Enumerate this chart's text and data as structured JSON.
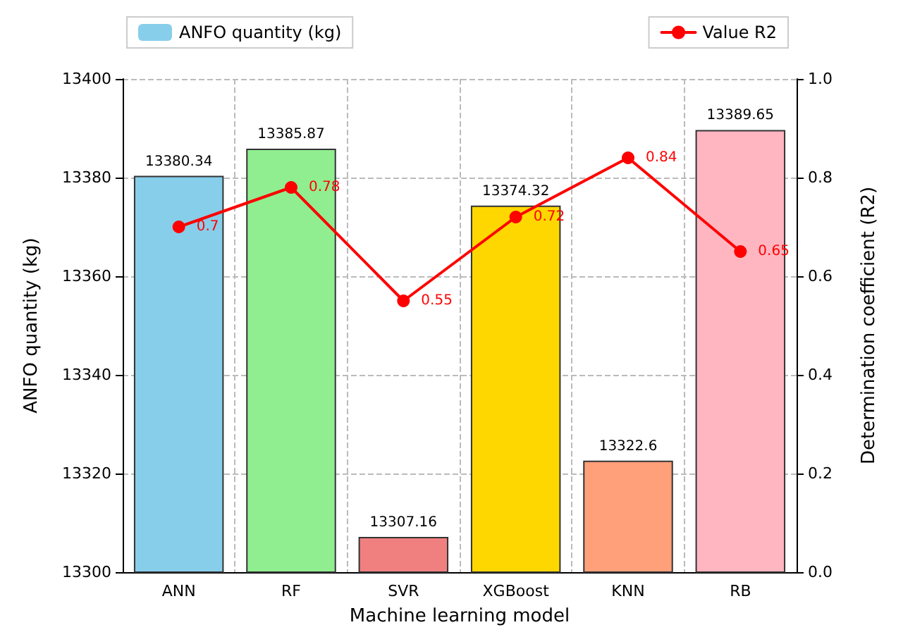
{
  "chart_data": {
    "type": "bar",
    "xlabel": "Machine learning model",
    "ylabel": "ANFO quantity (kg)",
    "y2label": "Determination coefficient (R2)",
    "categories": [
      "ANN",
      "RF",
      "SVR",
      "XGBoost",
      "KNN",
      "RB"
    ],
    "series": [
      {
        "name": "ANFO quantity (kg)",
        "colors": [
          "#87ceeb",
          "#90ee90",
          "#f08080",
          "#ffd700",
          "#ffa07a",
          "#ffb6c1"
        ],
        "values": [
          13380.34,
          13385.87,
          13307.16,
          13374.32,
          13322.6,
          13389.65
        ]
      },
      {
        "type": "line",
        "name": "Value R2",
        "color": "#ff0000",
        "axis": "y2",
        "values": [
          0.7,
          0.78,
          0.55,
          0.72,
          0.84,
          0.65
        ]
      }
    ],
    "ylim": [
      13300,
      13400
    ],
    "yticks": [
      13300,
      13320,
      13340,
      13360,
      13380,
      13400
    ],
    "y2lim": [
      0,
      1
    ],
    "y2ticks": [
      {
        "value": 0,
        "label": "0.0"
      },
      {
        "value": 0.2,
        "label": "0.2"
      },
      {
        "value": 0.4,
        "label": "0.4"
      },
      {
        "value": 0.6,
        "label": "0.6"
      },
      {
        "value": 0.8,
        "label": "0.8"
      },
      {
        "value": 1,
        "label": "1.0"
      }
    ],
    "data_labels": true,
    "grid": true,
    "legend": "top",
    "marker": "circle",
    "line_style": "solid"
  }
}
